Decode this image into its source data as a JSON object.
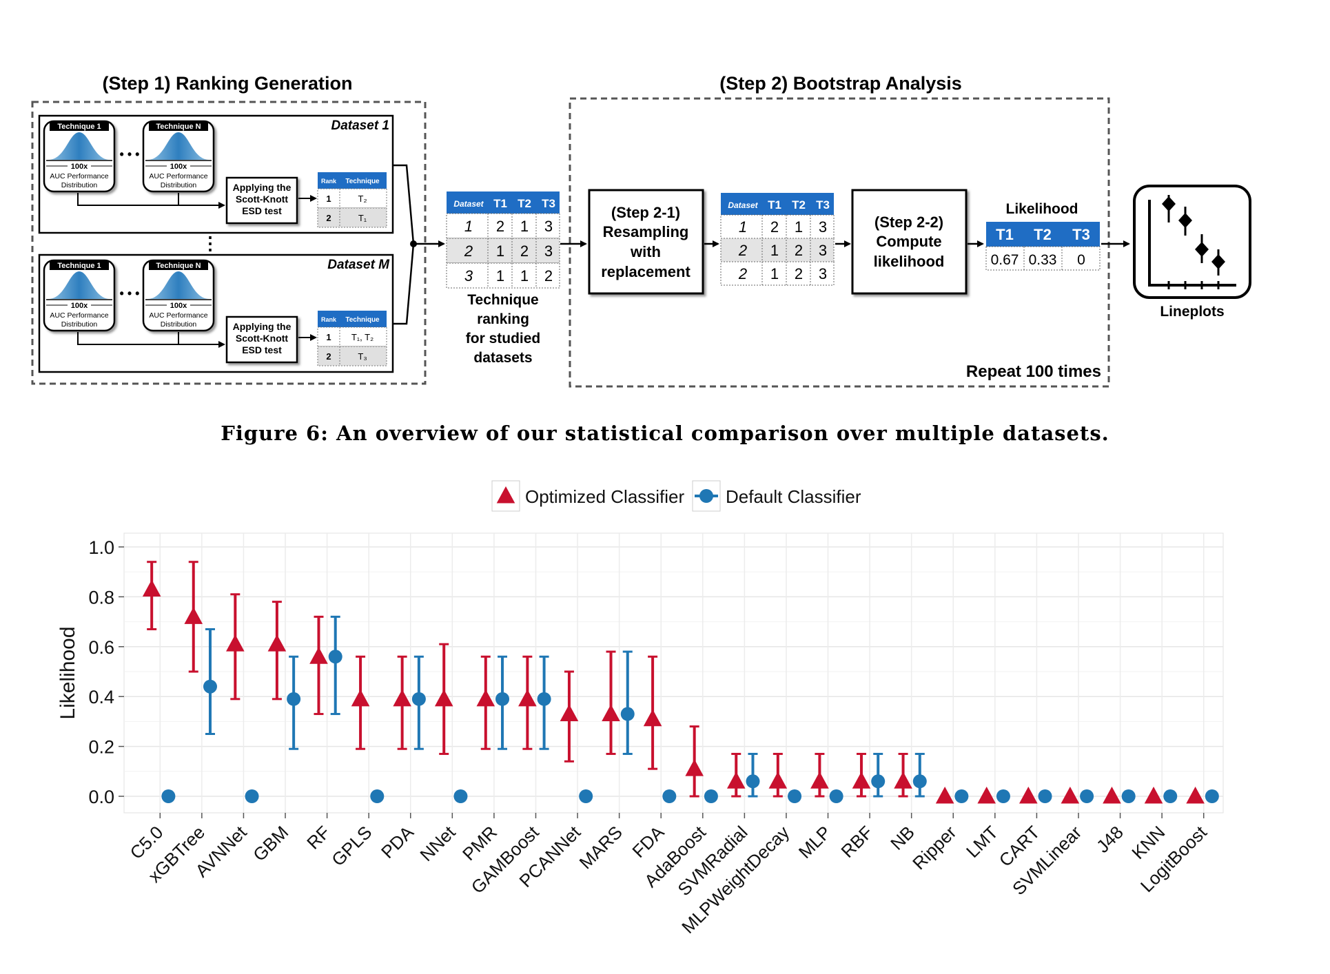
{
  "diagram": {
    "step1_title": "(Step 1) Ranking Generation",
    "step2_title": "(Step 2) Bootstrap Analysis",
    "dataset1_label": "Dataset 1",
    "datasetM_label": "Dataset M",
    "technique_1": "Technique 1",
    "technique_n": "Technique N",
    "dots_h": "• • •",
    "dots_v": "⋮",
    "iter": "100x",
    "auc_line1": "AUC Performance",
    "auc_line2": "Distribution",
    "sk_line1": "Applying the",
    "sk_line2": "Scott-Knott",
    "sk_line3": "ESD test",
    "rank_header": "Rank",
    "technique_header": "Technique",
    "rank_table_1": [
      [
        "1",
        "T₂"
      ],
      [
        "2",
        "T₁"
      ]
    ],
    "rank_table_M": [
      [
        "1",
        "T₁, T₂"
      ],
      [
        "2",
        "T₃"
      ]
    ],
    "ranking_headers": [
      "Dataset",
      "T1",
      "T2",
      "T3"
    ],
    "ranking_rows": [
      [
        "1",
        "2",
        "1",
        "3"
      ],
      [
        "2",
        "1",
        "2",
        "3"
      ],
      [
        "3",
        "1",
        "1",
        "2"
      ]
    ],
    "resampled_rows": [
      [
        "1",
        "2",
        "1",
        "3"
      ],
      [
        "2",
        "1",
        "2",
        "3"
      ],
      [
        "2",
        "1",
        "2",
        "3"
      ]
    ],
    "ranking_caption": [
      "Technique",
      "ranking",
      "for studied",
      "datasets"
    ],
    "step21": [
      "(Step 2-1)",
      "Resampling",
      "with",
      "replacement"
    ],
    "step22": [
      "(Step 2-2)",
      "Compute",
      "likelihood"
    ],
    "likelihood_title": "Likelihood",
    "likelihood_headers": [
      "T1",
      "T2",
      "T3"
    ],
    "likelihood_values": [
      "0.67",
      "0.33",
      "0"
    ],
    "repeat_label": "Repeat 100 times",
    "lineplots_label": "Lineplots"
  },
  "caption": "Figure 6:  An overview of our statistical comparison over multiple datasets.",
  "colors": {
    "optimized": "#c8102e",
    "default": "#1f77b4",
    "table_header": "#1f6dc4"
  },
  "chart_data": {
    "type": "scatter",
    "ylabel": "Likelihood",
    "xlabel": "",
    "ylim": [
      0,
      1.0
    ],
    "yticks": [
      "0.0",
      "0.2",
      "0.4",
      "0.6",
      "0.8",
      "1.0"
    ],
    "grid": true,
    "legend_position": "top",
    "categories": [
      "C5.0",
      "xGBTree",
      "AVNNet",
      "GBM",
      "RF",
      "GPLS",
      "PDA",
      "NNet",
      "PMR",
      "GAMBoost",
      "PCANNet",
      "MARS",
      "FDA",
      "AdaBoost",
      "SVMRadial",
      "MLPWeightDecay",
      "MLP",
      "RBF",
      "NB",
      "Ripper",
      "LMT",
      "CART",
      "SVMLinear",
      "J48",
      "KNN",
      "LogitBoost"
    ],
    "series": [
      {
        "name": "Optimized Classifier",
        "marker": "triangle",
        "values": [
          0.83,
          0.72,
          0.61,
          0.61,
          0.56,
          0.39,
          0.39,
          0.39,
          0.39,
          0.39,
          0.33,
          0.33,
          0.31,
          0.11,
          0.06,
          0.06,
          0.06,
          0.06,
          0.06,
          0.0,
          0.0,
          0.0,
          0.0,
          0.0,
          0.0,
          0.0
        ],
        "lower": [
          0.67,
          0.5,
          0.39,
          0.39,
          0.33,
          0.19,
          0.19,
          0.17,
          0.19,
          0.19,
          0.14,
          0.17,
          0.11,
          0.0,
          0.0,
          0.0,
          0.0,
          0.0,
          0.0,
          0.0,
          0.0,
          0.0,
          0.0,
          0.0,
          0.0,
          0.0
        ],
        "upper": [
          0.94,
          0.94,
          0.81,
          0.78,
          0.72,
          0.56,
          0.56,
          0.61,
          0.56,
          0.56,
          0.5,
          0.58,
          0.56,
          0.28,
          0.17,
          0.17,
          0.17,
          0.17,
          0.17,
          0.0,
          0.0,
          0.0,
          0.0,
          0.0,
          0.0,
          0.0
        ]
      },
      {
        "name": "Default Classifier",
        "marker": "circle",
        "values": [
          0.0,
          0.44,
          0.0,
          0.39,
          0.56,
          0.0,
          0.39,
          0.0,
          0.39,
          0.39,
          0.0,
          0.33,
          0.0,
          0.0,
          0.06,
          0.0,
          0.0,
          0.06,
          0.06,
          0.0,
          0.0,
          0.0,
          0.0,
          0.0,
          0.0,
          0.0
        ],
        "lower": [
          0.0,
          0.25,
          0.0,
          0.19,
          0.33,
          0.0,
          0.19,
          0.0,
          0.19,
          0.19,
          0.0,
          0.17,
          0.0,
          0.0,
          0.0,
          0.0,
          0.0,
          0.0,
          0.0,
          0.0,
          0.0,
          0.0,
          0.0,
          0.0,
          0.0,
          0.0
        ],
        "upper": [
          0.0,
          0.67,
          0.0,
          0.56,
          0.72,
          0.0,
          0.56,
          0.0,
          0.56,
          0.56,
          0.0,
          0.58,
          0.0,
          0.0,
          0.17,
          0.0,
          0.0,
          0.17,
          0.17,
          0.0,
          0.0,
          0.0,
          0.0,
          0.0,
          0.0,
          0.0
        ]
      }
    ]
  }
}
